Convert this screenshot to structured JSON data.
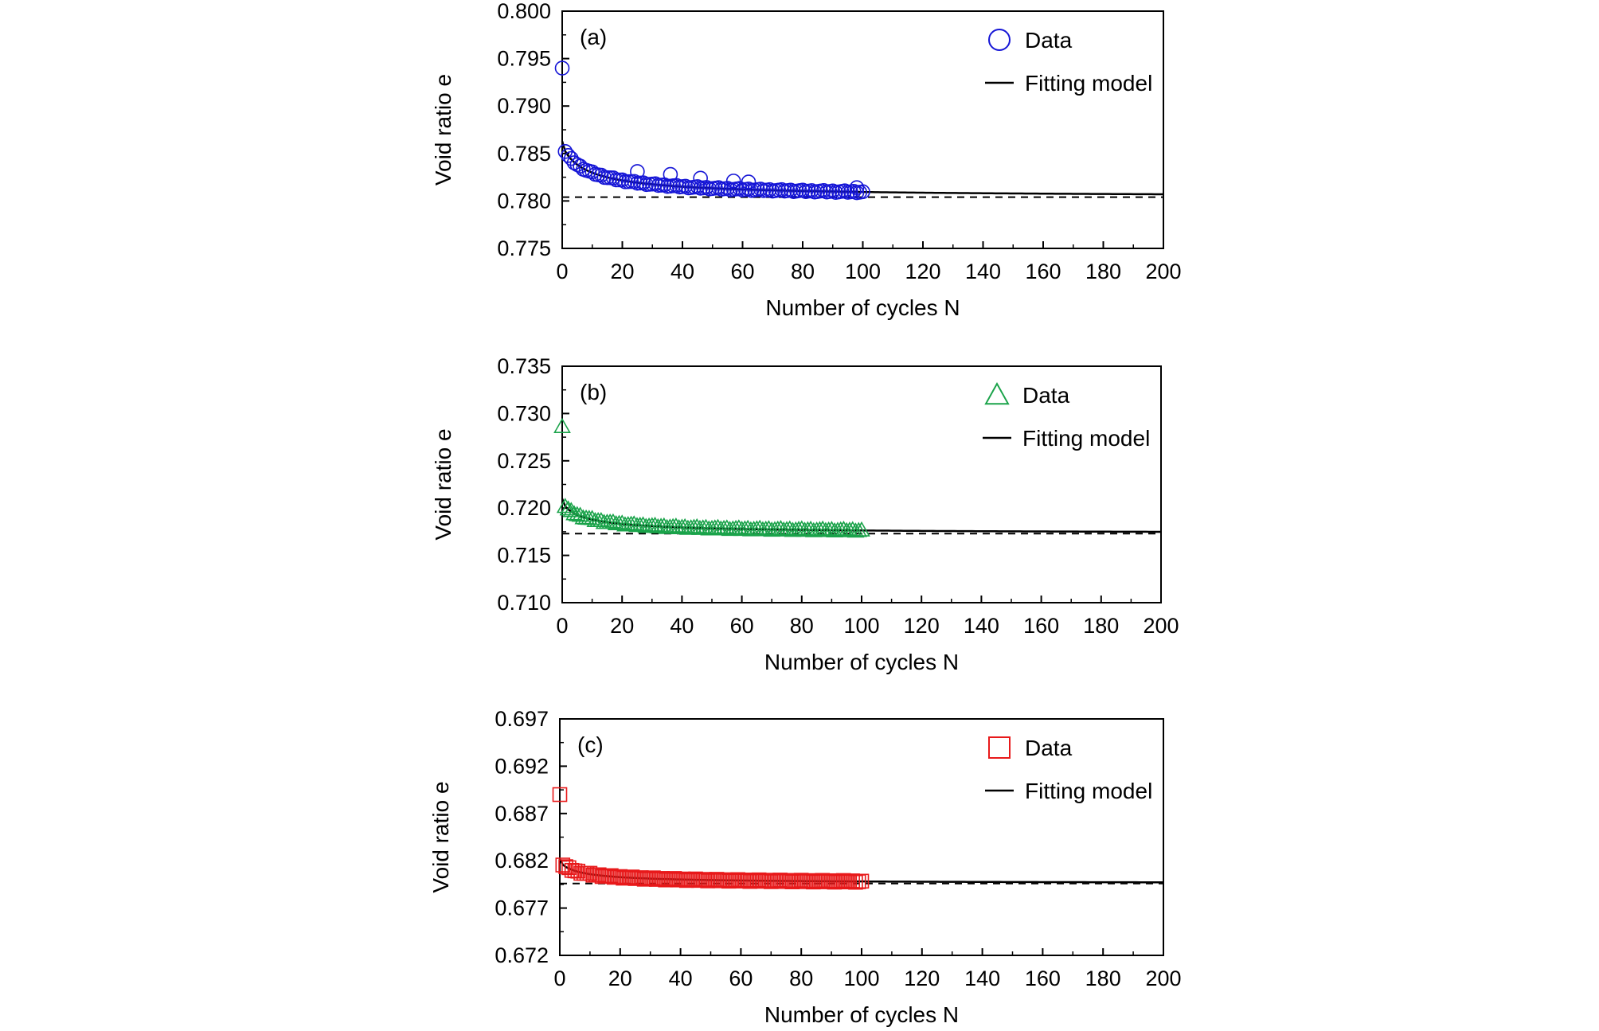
{
  "chart_data": [
    {
      "type": "scatter",
      "panel_label": "(a)",
      "xlabel": "Number of cycles N",
      "ylabel": "Void ratio e",
      "xlim": [
        0,
        200
      ],
      "ylim": [
        0.775,
        0.8
      ],
      "xticks": [
        "0",
        "20",
        "40",
        "60",
        "80",
        "100",
        "120",
        "140",
        "160",
        "180",
        "200"
      ],
      "yticks": [
        "0.775",
        "0.780",
        "0.785",
        "0.790",
        "0.795",
        "0.800"
      ],
      "legend": {
        "placement": "top-right",
        "data_label": "Data",
        "model_label": "Fitting model"
      },
      "marker": "circle",
      "color": "#1515d6",
      "model": {
        "e_final": 0.7804,
        "amplitude": 0.0059,
        "rate": 0.155,
        "power": 0.4,
        "x_max": 200
      },
      "asymptote": 0.7804,
      "outliers": [
        [
          0,
          0.794
        ],
        [
          25,
          0.7831
        ],
        [
          36,
          0.7828
        ],
        [
          46,
          0.7824
        ],
        [
          57,
          0.7821
        ],
        [
          62,
          0.782
        ],
        [
          98,
          0.7814
        ]
      ]
    },
    {
      "type": "scatter",
      "panel_label": "(b)",
      "xlabel": "Number of cycles N",
      "ylabel": "Void ratio e",
      "xlim": [
        0,
        200
      ],
      "ylim": [
        0.71,
        0.735
      ],
      "xticks": [
        "0",
        "20",
        "40",
        "60",
        "80",
        "100",
        "120",
        "140",
        "160",
        "180",
        "200"
      ],
      "yticks": [
        "0.710",
        "0.715",
        "0.720",
        "0.725",
        "0.730",
        "0.735"
      ],
      "legend": {
        "placement": "top-right",
        "data_label": "Data",
        "model_label": "Fitting model"
      },
      "marker": "triangle",
      "color": "#1aa34a",
      "model": {
        "e_final": 0.7173,
        "amplitude": 0.0037,
        "rate": 0.2,
        "power": 0.35,
        "x_max": 200
      },
      "asymptote": 0.7173,
      "outliers": [
        [
          0,
          0.7286
        ]
      ]
    },
    {
      "type": "scatter",
      "panel_label": "(c)",
      "xlabel": "Number of cycles N",
      "ylabel": "Void ratio e",
      "xlim": [
        0,
        200
      ],
      "ylim": [
        0.672,
        0.697
      ],
      "xticks": [
        "0",
        "20",
        "40",
        "60",
        "80",
        "100",
        "120",
        "140",
        "160",
        "180",
        "200"
      ],
      "yticks": [
        "0.672",
        "0.677",
        "0.682",
        "0.687",
        "0.692",
        "0.697"
      ],
      "legend": {
        "placement": "top-right",
        "data_label": "Data",
        "model_label": "Fitting model"
      },
      "marker": "square",
      "color": "#e8191a",
      "model": {
        "e_final": 0.6796,
        "amplitude": 0.0026,
        "rate": 0.22,
        "power": 0.35,
        "x_max": 200
      },
      "asymptote": 0.6796,
      "outliers": [
        [
          0,
          0.689
        ]
      ]
    }
  ]
}
